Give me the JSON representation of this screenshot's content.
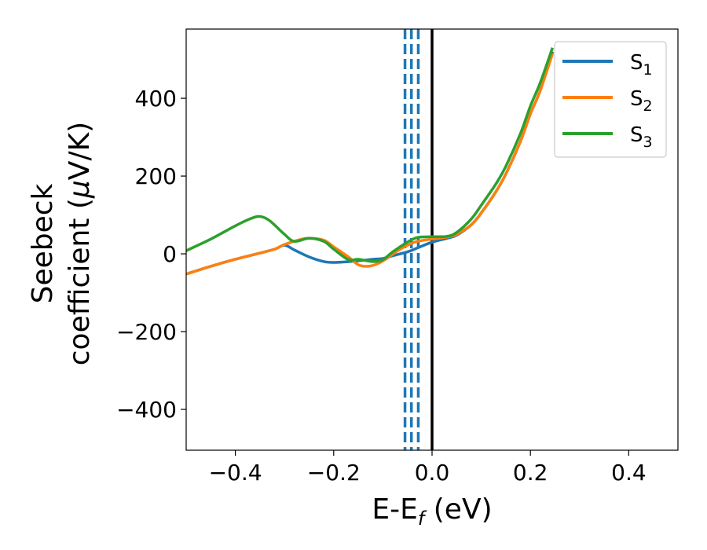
{
  "chart_data": {
    "type": "line",
    "xlabel": "E-E",
    "xlabel_sub": "f",
    "xlabel_unit": " (eV)",
    "ylabel_line1": "Seebeck",
    "ylabel_line2_pre": "coefficient  (",
    "ylabel_mu": "μ",
    "ylabel_line2_post": "V/K)",
    "xlim": [
      -0.5,
      0.5
    ],
    "ylim": [
      -505,
      578
    ],
    "xticks": [
      -0.4,
      -0.2,
      0.0,
      0.2,
      0.4
    ],
    "xtick_labels": [
      "−0.4",
      "−0.2",
      "0.0",
      "0.2",
      "0.4"
    ],
    "yticks": [
      -400,
      -200,
      0,
      200,
      400
    ],
    "ytick_labels": [
      "−400",
      "−200",
      "0",
      "200",
      "400"
    ],
    "grid": false,
    "legend_position": "top-right",
    "vlines": [
      {
        "x": -0.055,
        "color": "#1f77b4",
        "style": "dashed"
      },
      {
        "x": -0.042,
        "color": "#1f77b4",
        "style": "dashed"
      },
      {
        "x": -0.028,
        "color": "#1f77b4",
        "style": "dashed"
      },
      {
        "x": 0.0,
        "color": "#000000",
        "style": "solid"
      }
    ],
    "series": [
      {
        "name": "S",
        "sub": "1",
        "color": "#1f77b4",
        "x": [
          -0.5,
          -0.45,
          -0.4,
          -0.35,
          -0.32,
          -0.3,
          -0.28,
          -0.25,
          -0.22,
          -0.2,
          -0.17,
          -0.15,
          -0.12,
          -0.1,
          -0.08,
          -0.05,
          -0.03,
          0.0,
          0.03,
          0.05,
          0.08,
          0.1,
          0.13,
          0.15,
          0.18,
          0.2,
          0.22,
          0.245
        ],
        "y": [
          -52,
          -32,
          -14,
          2,
          12,
          22,
          10,
          -8,
          -20,
          -22,
          -20,
          -18,
          -14,
          -12,
          -5,
          5,
          15,
          30,
          40,
          48,
          75,
          105,
          160,
          205,
          290,
          360,
          420,
          520
        ]
      },
      {
        "name": "S",
        "sub": "2",
        "color": "#ff7f0e",
        "x": [
          -0.5,
          -0.45,
          -0.4,
          -0.35,
          -0.32,
          -0.3,
          -0.27,
          -0.25,
          -0.22,
          -0.2,
          -0.17,
          -0.15,
          -0.13,
          -0.11,
          -0.09,
          -0.07,
          -0.05,
          -0.03,
          0.0,
          0.03,
          0.05,
          0.08,
          0.1,
          0.13,
          0.15,
          0.18,
          0.2,
          0.22,
          0.245
        ],
        "y": [
          -52,
          -32,
          -14,
          2,
          12,
          24,
          36,
          40,
          35,
          18,
          -8,
          -28,
          -32,
          -25,
          -10,
          8,
          22,
          32,
          38,
          43,
          50,
          75,
          105,
          160,
          205,
          290,
          360,
          420,
          515
        ]
      },
      {
        "name": "S",
        "sub": "3",
        "color": "#2ca02c",
        "x": [
          -0.5,
          -0.45,
          -0.4,
          -0.37,
          -0.35,
          -0.33,
          -0.3,
          -0.28,
          -0.25,
          -0.22,
          -0.2,
          -0.17,
          -0.15,
          -0.12,
          -0.1,
          -0.08,
          -0.05,
          -0.03,
          0.0,
          0.03,
          0.05,
          0.08,
          0.1,
          0.13,
          0.15,
          0.18,
          0.2,
          0.22,
          0.245
        ],
        "y": [
          8,
          38,
          72,
          90,
          96,
          85,
          50,
          32,
          40,
          32,
          12,
          -15,
          -14,
          -20,
          -15,
          5,
          30,
          42,
          44,
          45,
          55,
          90,
          125,
          180,
          225,
          310,
          380,
          440,
          530
        ]
      }
    ]
  }
}
